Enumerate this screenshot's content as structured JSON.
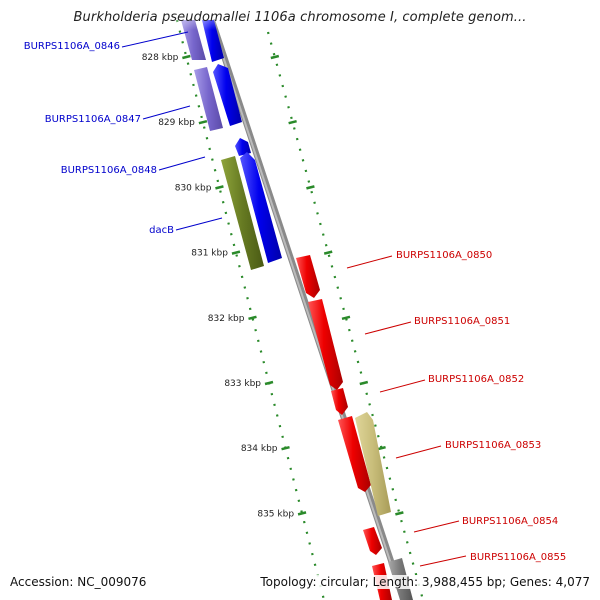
{
  "title": "Burkholderia pseudomallei 1106a chromosome I, complete genom...",
  "footer": {
    "accession_label": "Accession:",
    "accession": "NC_009076",
    "topology_text": "Topology: circular; Length: 3,988,455 bp; Genes: 4,077"
  },
  "colors": {
    "forward_gene": "#0000ee",
    "forward_gene_faded": "#7766cc",
    "reverse_gene": "#ee0000",
    "olive_gene": "#667a22",
    "khaki_gene": "#c8bd7a",
    "backbone": "#8a8a8a",
    "tick": "#2a8a2a",
    "label_forward": "#0000cc",
    "label_reverse": "#cc0000"
  },
  "ticks": [
    {
      "label": "828 kbp",
      "kbp": 828
    },
    {
      "label": "829 kbp",
      "kbp": 829
    },
    {
      "label": "830 kbp",
      "kbp": 830
    },
    {
      "label": "831 kbp",
      "kbp": 831
    },
    {
      "label": "832 kbp",
      "kbp": 832
    },
    {
      "label": "833 kbp",
      "kbp": 833
    },
    {
      "label": "834 kbp",
      "kbp": 834
    },
    {
      "label": "835 kbp",
      "kbp": 835
    }
  ],
  "genes": [
    {
      "name": "BURPS1106A_0846",
      "strand": "+"
    },
    {
      "name": "BURPS1106A_0847",
      "strand": "+"
    },
    {
      "name": "BURPS1106A_0848",
      "strand": "+"
    },
    {
      "name": "dacB",
      "strand": "+"
    },
    {
      "name": "BURPS1106A_0850",
      "strand": "-"
    },
    {
      "name": "BURPS1106A_0851",
      "strand": "-"
    },
    {
      "name": "BURPS1106A_0852",
      "strand": "-"
    },
    {
      "name": "BURPS1106A_0853",
      "strand": "-"
    },
    {
      "name": "BURPS1106A_0854",
      "strand": "-"
    },
    {
      "name": "BURPS1106A_0855",
      "strand": "-"
    }
  ]
}
